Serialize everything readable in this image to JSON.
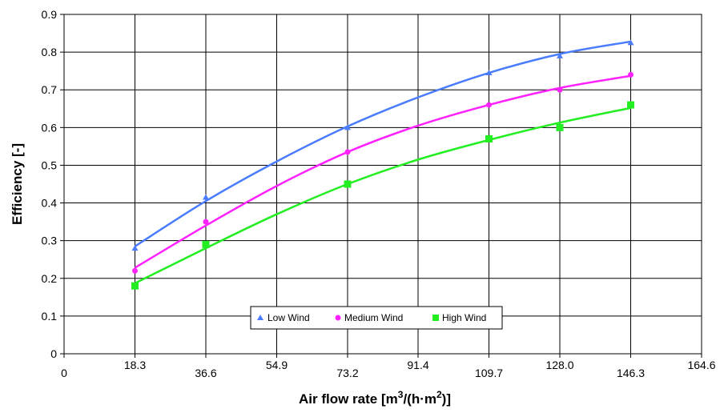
{
  "chart_data": {
    "type": "scatter",
    "xlabel_main": "Air flow rate [m",
    "xlabel_sup1": "3",
    "xlabel_mid": "/(h·m",
    "xlabel_sup2": "2",
    "xlabel_end": ")]",
    "ylabel": "Efficiency [-]",
    "xlim": [
      0,
      164.6
    ],
    "ylim": [
      0,
      0.9
    ],
    "x_ticks": [
      "0",
      "18.3",
      "36.6",
      "54.9",
      "73.2",
      "91.4",
      "109.7",
      "128.0",
      "146.3",
      "164.6"
    ],
    "y_ticks": [
      "0",
      "0.1",
      "0.2",
      "0.3",
      "0.4",
      "0.5",
      "0.6",
      "0.7",
      "0.8",
      "0.9"
    ],
    "grid": true,
    "legend_position": "bottom-center",
    "series": [
      {
        "name": "Low Wind",
        "color": "#4a7cff",
        "marker": "triangle",
        "x": [
          18.3,
          36.6,
          73.2,
          109.7,
          128.0,
          146.3
        ],
        "y": [
          0.28,
          0.415,
          0.6,
          0.745,
          0.79,
          0.825
        ],
        "trend": [
          [
            18.3,
            0.285
          ],
          [
            36.6,
            0.405
          ],
          [
            54.9,
            0.51
          ],
          [
            73.2,
            0.603
          ],
          [
            91.4,
            0.68
          ],
          [
            109.7,
            0.745
          ],
          [
            128.0,
            0.795
          ],
          [
            146.3,
            0.828
          ]
        ]
      },
      {
        "name": "Medium Wind",
        "color": "#ff22ff",
        "marker": "circle",
        "x": [
          18.3,
          36.6,
          73.2,
          109.7,
          128.0,
          146.3
        ],
        "y": [
          0.22,
          0.35,
          0.535,
          0.66,
          0.7,
          0.74
        ],
        "trend": [
          [
            18.3,
            0.228
          ],
          [
            36.6,
            0.34
          ],
          [
            54.9,
            0.445
          ],
          [
            73.2,
            0.535
          ],
          [
            91.4,
            0.605
          ],
          [
            109.7,
            0.66
          ],
          [
            128.0,
            0.705
          ],
          [
            146.3,
            0.737
          ]
        ]
      },
      {
        "name": "High Wind",
        "color": "#22ee22",
        "marker": "square",
        "x": [
          18.3,
          36.6,
          73.2,
          109.7,
          128.0,
          146.3
        ],
        "y": [
          0.18,
          0.29,
          0.45,
          0.57,
          0.6,
          0.66
        ],
        "trend": [
          [
            18.3,
            0.187
          ],
          [
            36.6,
            0.28
          ],
          [
            54.9,
            0.37
          ],
          [
            73.2,
            0.45
          ],
          [
            91.4,
            0.515
          ],
          [
            109.7,
            0.567
          ],
          [
            128.0,
            0.613
          ],
          [
            146.3,
            0.652
          ]
        ]
      }
    ]
  }
}
